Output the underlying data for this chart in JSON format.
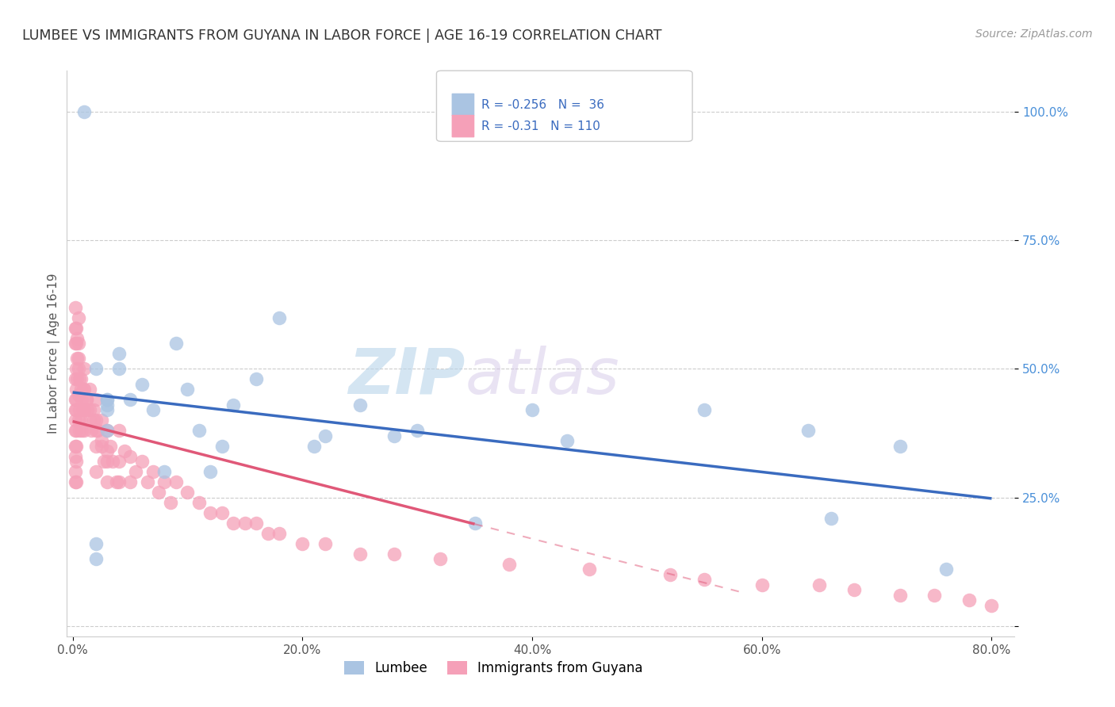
{
  "title": "LUMBEE VS IMMIGRANTS FROM GUYANA IN LABOR FORCE | AGE 16-19 CORRELATION CHART",
  "source": "Source: ZipAtlas.com",
  "ylabel": "In Labor Force | Age 16-19",
  "xlim": [
    -0.005,
    0.82
  ],
  "ylim": [
    -0.02,
    1.08
  ],
  "ytick_values": [
    0.0,
    0.25,
    0.5,
    0.75,
    1.0
  ],
  "xtick_values": [
    0.0,
    0.2,
    0.4,
    0.6,
    0.8
  ],
  "legend_label1": "Lumbee",
  "legend_label2": "Immigrants from Guyana",
  "R1": -0.256,
  "N1": 36,
  "R2": -0.31,
  "N2": 110,
  "color1": "#aac4e2",
  "color2": "#f5a0b8",
  "line_color1": "#3a6bbf",
  "line_color2": "#e05878",
  "watermark_zip": "ZIP",
  "watermark_atlas": "atlas",
  "lumbee_x": [
    0.01,
    0.02,
    0.02,
    0.03,
    0.03,
    0.03,
    0.03,
    0.04,
    0.04,
    0.05,
    0.06,
    0.07,
    0.08,
    0.09,
    0.1,
    0.11,
    0.12,
    0.13,
    0.14,
    0.16,
    0.18,
    0.21,
    0.22,
    0.25,
    0.28,
    0.3,
    0.35,
    0.4,
    0.43,
    0.55,
    0.64,
    0.66,
    0.72,
    0.76,
    0.02,
    0.03
  ],
  "lumbee_y": [
    1.0,
    0.13,
    0.16,
    0.38,
    0.43,
    0.42,
    0.44,
    0.5,
    0.53,
    0.44,
    0.47,
    0.42,
    0.3,
    0.55,
    0.46,
    0.38,
    0.3,
    0.35,
    0.43,
    0.48,
    0.6,
    0.35,
    0.37,
    0.43,
    0.37,
    0.38,
    0.2,
    0.42,
    0.36,
    0.42,
    0.38,
    0.21,
    0.35,
    0.11,
    0.5,
    0.44
  ],
  "guyana_x": [
    0.002,
    0.002,
    0.002,
    0.002,
    0.002,
    0.002,
    0.002,
    0.002,
    0.002,
    0.002,
    0.002,
    0.003,
    0.003,
    0.003,
    0.003,
    0.003,
    0.003,
    0.003,
    0.003,
    0.003,
    0.004,
    0.004,
    0.004,
    0.005,
    0.005,
    0.005,
    0.005,
    0.005,
    0.006,
    0.006,
    0.006,
    0.007,
    0.007,
    0.008,
    0.008,
    0.009,
    0.01,
    0.01,
    0.01,
    0.01,
    0.012,
    0.013,
    0.015,
    0.015,
    0.016,
    0.018,
    0.02,
    0.02,
    0.02,
    0.02,
    0.022,
    0.025,
    0.025,
    0.027,
    0.03,
    0.03,
    0.03,
    0.033,
    0.035,
    0.038,
    0.04,
    0.04,
    0.04,
    0.045,
    0.05,
    0.05,
    0.055,
    0.06,
    0.065,
    0.07,
    0.075,
    0.08,
    0.085,
    0.09,
    0.1,
    0.11,
    0.12,
    0.13,
    0.14,
    0.15,
    0.16,
    0.17,
    0.18,
    0.2,
    0.22,
    0.25,
    0.28,
    0.32,
    0.38,
    0.45,
    0.52,
    0.55,
    0.6,
    0.65,
    0.68,
    0.72,
    0.75,
    0.78,
    0.8,
    0.002,
    0.003,
    0.005,
    0.007,
    0.009,
    0.012,
    0.015,
    0.018,
    0.02,
    0.025,
    0.03
  ],
  "guyana_y": [
    0.55,
    0.58,
    0.48,
    0.44,
    0.42,
    0.4,
    0.38,
    0.35,
    0.33,
    0.3,
    0.28,
    0.55,
    0.5,
    0.46,
    0.44,
    0.42,
    0.38,
    0.35,
    0.32,
    0.28,
    0.56,
    0.52,
    0.48,
    0.6,
    0.55,
    0.5,
    0.45,
    0.4,
    0.48,
    0.42,
    0.38,
    0.46,
    0.4,
    0.44,
    0.38,
    0.42,
    0.5,
    0.46,
    0.42,
    0.38,
    0.44,
    0.42,
    0.46,
    0.4,
    0.38,
    0.42,
    0.44,
    0.4,
    0.35,
    0.3,
    0.38,
    0.4,
    0.35,
    0.32,
    0.38,
    0.32,
    0.28,
    0.35,
    0.32,
    0.28,
    0.38,
    0.32,
    0.28,
    0.34,
    0.33,
    0.28,
    0.3,
    0.32,
    0.28,
    0.3,
    0.26,
    0.28,
    0.24,
    0.28,
    0.26,
    0.24,
    0.22,
    0.22,
    0.2,
    0.2,
    0.2,
    0.18,
    0.18,
    0.16,
    0.16,
    0.14,
    0.14,
    0.13,
    0.12,
    0.11,
    0.1,
    0.09,
    0.08,
    0.08,
    0.07,
    0.06,
    0.06,
    0.05,
    0.04,
    0.62,
    0.58,
    0.52,
    0.48,
    0.46,
    0.44,
    0.42,
    0.4,
    0.38,
    0.36,
    0.34
  ]
}
